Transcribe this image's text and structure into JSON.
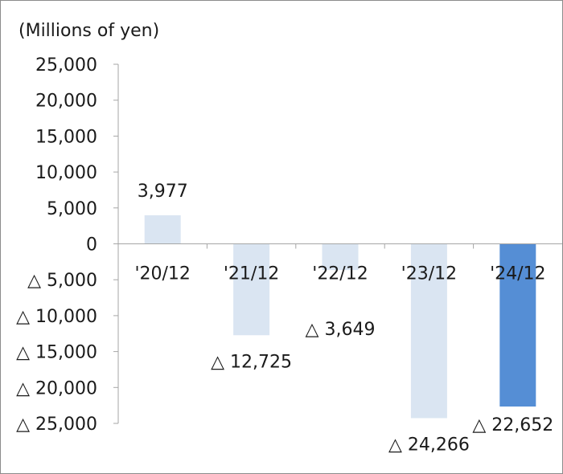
{
  "chart_data": {
    "type": "bar",
    "unit_label": "(Millions of yen)",
    "categories": [
      "'20/12",
      "'21/12",
      "'22/12",
      "'23/12",
      "'24/12"
    ],
    "values": [
      3977,
      -12725,
      -3649,
      -24266,
      -22652
    ],
    "data_labels": [
      "3,977",
      "△ 12,725",
      "△ 3,649",
      "△ 24,266",
      "△ 22,652"
    ],
    "y_ticks": [
      {
        "value": 25000,
        "label": "25,000"
      },
      {
        "value": 20000,
        "label": "20,000"
      },
      {
        "value": 15000,
        "label": "15,000"
      },
      {
        "value": 10000,
        "label": "10,000"
      },
      {
        "value": 5000,
        "label": "5,000"
      },
      {
        "value": 0,
        "label": "0"
      },
      {
        "value": -5000,
        "label": "△ 5,000"
      },
      {
        "value": -10000,
        "label": "△ 10,000"
      },
      {
        "value": -15000,
        "label": "△ 15,000"
      },
      {
        "value": -20000,
        "label": "△ 20,000"
      },
      {
        "value": -25000,
        "label": "△ 25,000"
      }
    ],
    "ylim": [
      -25000,
      25000
    ],
    "grid": false,
    "colors": {
      "bar": "#dae5f2",
      "highlight": "#558ed5",
      "axis": "#a6a6a6"
    },
    "highlight_index": 4
  }
}
